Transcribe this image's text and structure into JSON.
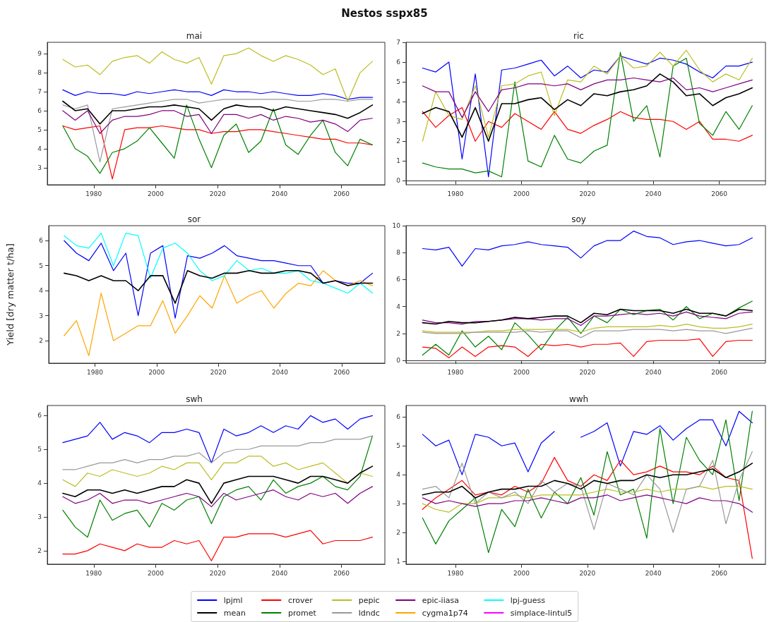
{
  "chart_data": [
    {
      "type": "line",
      "title": "mai",
      "annotations": [
        "Nestos sspx85"
      ],
      "legend": "bottom",
      "marker": "none",
      "xlim": [
        1965,
        2074
      ],
      "xticks": [
        1980,
        2000,
        2020,
        2040,
        2060
      ],
      "ylim": [
        2.1,
        9.6
      ],
      "yticks": [
        3,
        4,
        5,
        6,
        7,
        8,
        9
      ],
      "x": [
        1970,
        1974,
        1978,
        1982,
        1986,
        1990,
        1994,
        1998,
        2002,
        2006,
        2010,
        2014,
        2018,
        2022,
        2026,
        2030,
        2034,
        2038,
        2042,
        2046,
        2050,
        2054,
        2058,
        2062,
        2066,
        2070
      ],
      "series": [
        {
          "name": "lpjml",
          "color": "#0000ff",
          "values": [
            7.1,
            6.8,
            7.0,
            6.9,
            6.9,
            6.8,
            7.0,
            6.9,
            7.0,
            7.1,
            7.0,
            7.0,
            6.8,
            7.1,
            7.0,
            7.0,
            6.9,
            7.0,
            6.9,
            6.8,
            6.8,
            6.9,
            6.8,
            6.6,
            6.7,
            6.7
          ]
        },
        {
          "name": "mean",
          "color": "#000000",
          "values": [
            6.5,
            6.0,
            6.1,
            5.3,
            6.0,
            6.0,
            6.1,
            6.2,
            6.2,
            6.3,
            6.2,
            6.1,
            5.5,
            6.1,
            6.3,
            6.2,
            6.2,
            6.0,
            6.2,
            6.1,
            6.0,
            5.9,
            5.8,
            5.6,
            5.9,
            6.3
          ]
        },
        {
          "name": "crover",
          "color": "#ff0000",
          "values": [
            5.2,
            5.0,
            5.1,
            5.2,
            2.4,
            5.0,
            5.1,
            5.1,
            5.2,
            5.1,
            5.0,
            5.0,
            4.8,
            4.9,
            4.9,
            5.0,
            5.0,
            4.9,
            4.8,
            4.7,
            4.6,
            4.5,
            4.5,
            4.3,
            4.3,
            4.2
          ]
        },
        {
          "name": "promet",
          "color": "#008000",
          "values": [
            5.2,
            4.0,
            3.6,
            2.7,
            3.8,
            4.0,
            4.4,
            5.1,
            4.3,
            3.5,
            6.3,
            4.5,
            3.0,
            4.7,
            5.3,
            3.8,
            4.4,
            6.1,
            4.2,
            3.7,
            4.7,
            5.5,
            3.8,
            3.1,
            4.5,
            4.2
          ]
        },
        {
          "name": "pepic",
          "color": "#bcbd22",
          "values": [
            8.7,
            8.3,
            8.4,
            7.9,
            8.6,
            8.8,
            8.9,
            8.5,
            9.1,
            8.7,
            8.5,
            8.8,
            7.4,
            8.9,
            9.0,
            9.3,
            8.9,
            8.6,
            8.9,
            8.7,
            8.4,
            7.9,
            8.2,
            6.5,
            8.0,
            8.6
          ]
        },
        {
          "name": "ldndc",
          "color": "#999999",
          "values": [
            6.3,
            6.1,
            6.3,
            3.3,
            6.1,
            6.2,
            6.3,
            6.4,
            6.5,
            6.6,
            6.6,
            6.4,
            6.5,
            6.6,
            6.6,
            6.6,
            6.6,
            6.6,
            6.6,
            6.5,
            6.5,
            6.6,
            6.6,
            6.5,
            6.6,
            6.6
          ]
        },
        {
          "name": "epic-iiasa",
          "color": "#800080",
          "values": [
            6.0,
            5.5,
            6.0,
            4.8,
            5.5,
            5.7,
            5.7,
            5.8,
            6.0,
            6.0,
            5.7,
            5.8,
            4.8,
            5.8,
            5.8,
            5.6,
            5.8,
            5.5,
            5.7,
            5.6,
            5.4,
            5.5,
            5.3,
            4.9,
            5.5,
            5.6
          ]
        }
      ]
    },
    {
      "type": "line",
      "title": "ric",
      "legend": "bottom",
      "marker": "none",
      "xlim": [
        1965,
        2074
      ],
      "xticks": [
        1980,
        2000,
        2020,
        2040,
        2060
      ],
      "ylim": [
        -0.2,
        7
      ],
      "yticks": [
        0,
        1,
        2,
        3,
        4,
        5,
        6,
        7
      ],
      "x": [
        1970,
        1974,
        1978,
        1982,
        1986,
        1990,
        1994,
        1998,
        2002,
        2006,
        2010,
        2014,
        2018,
        2022,
        2026,
        2030,
        2034,
        2038,
        2042,
        2046,
        2050,
        2054,
        2058,
        2062,
        2066,
        2070
      ],
      "series": [
        {
          "name": "lpjml",
          "color": "#0000ff",
          "values": [
            5.7,
            5.5,
            6.0,
            1.1,
            5.4,
            0.2,
            5.6,
            5.7,
            5.9,
            6.1,
            5.3,
            5.8,
            5.2,
            5.6,
            5.5,
            6.3,
            6.1,
            5.9,
            6.2,
            6.1,
            5.9,
            5.5,
            5.2,
            5.8,
            5.8,
            6.0
          ]
        },
        {
          "name": "mean",
          "color": "#000000",
          "values": [
            3.4,
            3.7,
            3.5,
            2.2,
            3.7,
            2.0,
            3.9,
            3.9,
            4.1,
            4.2,
            3.6,
            4.1,
            3.8,
            4.4,
            4.3,
            4.5,
            4.6,
            4.8,
            5.4,
            5.0,
            4.3,
            4.4,
            3.8,
            4.2,
            4.4,
            4.7
          ]
        },
        {
          "name": "crover",
          "color": "#ff0000",
          "values": [
            3.5,
            2.7,
            3.3,
            3.7,
            2.0,
            3.0,
            2.7,
            3.4,
            3.0,
            2.6,
            3.5,
            2.6,
            2.4,
            2.8,
            3.1,
            3.5,
            3.2,
            3.1,
            3.1,
            3.0,
            2.6,
            3.0,
            2.1,
            2.1,
            2.0,
            2.3
          ]
        },
        {
          "name": "promet",
          "color": "#008000",
          "values": [
            0.9,
            0.7,
            0.6,
            0.6,
            0.4,
            0.5,
            0.2,
            5.0,
            1.0,
            0.7,
            2.3,
            1.1,
            0.9,
            1.5,
            1.8,
            6.5,
            3.0,
            3.8,
            1.2,
            5.8,
            6.2,
            2.9,
            2.3,
            3.5,
            2.6,
            3.8
          ]
        },
        {
          "name": "pepic",
          "color": "#bcbd22",
          "values": [
            2.0,
            4.5,
            3.3,
            3.1,
            4.8,
            2.2,
            4.8,
            4.9,
            5.3,
            5.5,
            3.3,
            5.1,
            5.0,
            5.8,
            5.4,
            6.3,
            5.7,
            5.8,
            6.5,
            5.8,
            6.6,
            5.6,
            5.0,
            5.4,
            5.1,
            6.2
          ]
        },
        {
          "name": "epic-iiasa",
          "color": "#800080",
          "values": [
            4.8,
            4.5,
            4.5,
            3.2,
            4.5,
            3.5,
            4.6,
            4.7,
            4.9,
            4.9,
            4.8,
            4.9,
            4.6,
            4.9,
            5.1,
            5.1,
            5.2,
            5.1,
            5.0,
            5.2,
            4.6,
            4.7,
            4.5,
            4.7,
            4.9,
            5.1
          ]
        }
      ]
    },
    {
      "type": "line",
      "title": "sor",
      "ylabel": "Yield [dry matter t/ha]",
      "legend": "bottom",
      "marker": "none",
      "xlim": [
        1965,
        2074
      ],
      "xticks": [
        1980,
        2000,
        2020,
        2040,
        2060
      ],
      "ylim": [
        1.1,
        6.6
      ],
      "yticks": [
        2,
        3,
        4,
        5,
        6
      ],
      "x": [
        1970,
        1974,
        1978,
        1982,
        1986,
        1990,
        1994,
        1998,
        2002,
        2006,
        2010,
        2014,
        2018,
        2022,
        2026,
        2030,
        2034,
        2038,
        2042,
        2046,
        2050,
        2054,
        2058,
        2062,
        2066,
        2070
      ],
      "series": [
        {
          "name": "lpjml",
          "color": "#0000ff",
          "values": [
            6.0,
            5.5,
            5.2,
            5.9,
            4.8,
            5.5,
            3.0,
            5.5,
            5.8,
            2.9,
            5.4,
            5.3,
            5.5,
            5.8,
            5.4,
            5.3,
            5.2,
            5.2,
            5.1,
            5.0,
            5.0,
            4.3,
            4.4,
            4.3,
            4.3,
            4.7
          ]
        },
        {
          "name": "mean",
          "color": "#000000",
          "values": [
            4.7,
            4.6,
            4.4,
            4.6,
            4.4,
            4.4,
            4.0,
            4.6,
            4.6,
            3.5,
            4.8,
            4.6,
            4.5,
            4.7,
            4.7,
            4.8,
            4.7,
            4.7,
            4.8,
            4.8,
            4.7,
            4.3,
            4.4,
            4.2,
            4.3,
            4.3
          ]
        },
        {
          "name": "cygma1p74",
          "color": "#ffa500",
          "values": [
            2.2,
            2.8,
            1.4,
            3.9,
            2.0,
            2.3,
            2.6,
            2.6,
            3.6,
            2.3,
            3.0,
            3.8,
            3.3,
            4.6,
            3.5,
            3.8,
            4.0,
            3.3,
            3.9,
            4.3,
            4.2,
            4.8,
            4.4,
            4.2,
            4.4,
            4.2
          ]
        },
        {
          "name": "lpj-guess",
          "color": "#00ffff",
          "values": [
            6.2,
            5.8,
            5.7,
            6.3,
            5.0,
            6.3,
            6.2,
            4.5,
            5.7,
            5.9,
            5.5,
            4.8,
            4.4,
            4.6,
            5.2,
            4.8,
            4.9,
            4.7,
            4.7,
            4.8,
            4.4,
            4.3,
            4.1,
            3.9,
            4.3,
            3.9
          ]
        }
      ]
    },
    {
      "type": "line",
      "title": "soy",
      "legend": "bottom",
      "marker": "none",
      "xlim": [
        1965,
        2074
      ],
      "xticks": [
        1980,
        2000,
        2020,
        2040,
        2060
      ],
      "ylim": [
        -0.2,
        10
      ],
      "yticks": [
        0,
        2,
        4,
        6,
        8,
        10
      ],
      "x": [
        1970,
        1974,
        1978,
        1982,
        1986,
        1990,
        1994,
        1998,
        2002,
        2006,
        2010,
        2014,
        2018,
        2022,
        2026,
        2030,
        2034,
        2038,
        2042,
        2046,
        2050,
        2054,
        2058,
        2062,
        2066,
        2070
      ],
      "series": [
        {
          "name": "lpjml",
          "color": "#0000ff",
          "values": [
            8.3,
            8.2,
            8.4,
            7.0,
            8.3,
            8.2,
            8.5,
            8.6,
            8.8,
            8.6,
            8.5,
            8.4,
            7.6,
            8.5,
            8.9,
            8.9,
            9.6,
            9.2,
            9.1,
            8.6,
            8.8,
            8.9,
            8.7,
            8.5,
            8.6,
            9.1
          ]
        },
        {
          "name": "mean",
          "color": "#000000",
          "values": [
            2.8,
            2.7,
            2.9,
            2.8,
            2.8,
            2.9,
            3.0,
            3.2,
            3.1,
            3.2,
            3.3,
            3.3,
            2.8,
            3.5,
            3.4,
            3.8,
            3.7,
            3.7,
            3.7,
            3.5,
            3.8,
            3.5,
            3.5,
            3.3,
            3.8,
            3.7
          ]
        },
        {
          "name": "crover",
          "color": "#ff0000",
          "values": [
            1.0,
            0.9,
            0.2,
            1.0,
            0.3,
            1.0,
            1.1,
            1.0,
            0.3,
            1.2,
            1.1,
            1.2,
            1.0,
            1.2,
            1.2,
            1.3,
            0.3,
            1.4,
            1.5,
            1.5,
            1.5,
            1.6,
            0.3,
            1.4,
            1.5,
            1.5
          ]
        },
        {
          "name": "promet",
          "color": "#008000",
          "values": [
            0.4,
            1.2,
            0.4,
            2.2,
            1.0,
            1.8,
            0.8,
            2.8,
            1.9,
            0.8,
            2.2,
            3.2,
            2.0,
            3.3,
            2.8,
            3.8,
            3.4,
            3.7,
            3.8,
            3.0,
            4.0,
            3.1,
            3.5,
            3.3,
            3.9,
            4.4
          ]
        },
        {
          "name": "pepic",
          "color": "#bcbd22",
          "values": [
            2.2,
            2.1,
            2.1,
            2.1,
            2.1,
            2.2,
            2.2,
            2.3,
            2.3,
            2.3,
            2.3,
            2.3,
            2.1,
            2.4,
            2.5,
            2.5,
            2.5,
            2.5,
            2.6,
            2.5,
            2.7,
            2.5,
            2.4,
            2.4,
            2.5,
            2.7
          ]
        },
        {
          "name": "ldndc",
          "color": "#999999",
          "values": [
            2.1,
            2.0,
            2.0,
            2.0,
            2.1,
            2.1,
            2.1,
            2.1,
            2.2,
            2.1,
            2.2,
            2.2,
            1.7,
            2.2,
            2.2,
            2.2,
            2.3,
            2.3,
            2.3,
            2.2,
            2.3,
            2.2,
            2.2,
            2.0,
            2.2,
            2.4
          ]
        },
        {
          "name": "epic-iiasa",
          "color": "#800080",
          "values": [
            3.0,
            2.8,
            2.8,
            2.7,
            2.9,
            2.9,
            3.0,
            3.1,
            3.1,
            3.0,
            3.1,
            3.1,
            2.6,
            3.3,
            3.3,
            3.4,
            3.5,
            3.4,
            3.5,
            3.3,
            3.6,
            3.3,
            3.2,
            3.1,
            3.5,
            3.6
          ]
        }
      ]
    },
    {
      "type": "line",
      "title": "swh",
      "legend": "bottom",
      "marker": "none",
      "xlim": [
        1965,
        2074
      ],
      "xticks": [
        1980,
        2000,
        2020,
        2040,
        2060
      ],
      "ylim": [
        1.6,
        6.3
      ],
      "yticks": [
        2,
        3,
        4,
        5,
        6
      ],
      "x": [
        1970,
        1974,
        1978,
        1982,
        1986,
        1990,
        1994,
        1998,
        2002,
        2006,
        2010,
        2014,
        2018,
        2022,
        2026,
        2030,
        2034,
        2038,
        2042,
        2046,
        2050,
        2054,
        2058,
        2062,
        2066,
        2070
      ],
      "series": [
        {
          "name": "lpjml",
          "color": "#0000ff",
          "values": [
            5.2,
            5.3,
            5.4,
            5.8,
            5.3,
            5.5,
            5.4,
            5.2,
            5.5,
            5.5,
            5.6,
            5.5,
            4.6,
            5.6,
            5.4,
            5.5,
            5.7,
            5.5,
            5.7,
            5.6,
            6.0,
            5.8,
            5.9,
            5.6,
            5.9,
            6.0
          ]
        },
        {
          "name": "mean",
          "color": "#000000",
          "values": [
            3.7,
            3.6,
            3.8,
            3.8,
            3.7,
            3.8,
            3.7,
            3.8,
            3.9,
            3.9,
            4.1,
            4.0,
            3.4,
            4.0,
            4.1,
            4.2,
            4.2,
            4.2,
            4.1,
            4.0,
            4.2,
            4.2,
            4.1,
            4.0,
            4.3,
            4.5
          ]
        },
        {
          "name": "crover",
          "color": "#ff0000",
          "values": [
            1.9,
            1.9,
            2.0,
            2.2,
            2.1,
            2.0,
            2.2,
            2.1,
            2.1,
            2.3,
            2.2,
            2.3,
            1.7,
            2.4,
            2.4,
            2.5,
            2.5,
            2.5,
            2.4,
            2.5,
            2.6,
            2.2,
            2.3,
            2.3,
            2.3,
            2.4
          ]
        },
        {
          "name": "promet",
          "color": "#008000",
          "values": [
            3.2,
            2.7,
            2.4,
            3.5,
            2.9,
            3.1,
            3.2,
            2.7,
            3.4,
            3.2,
            3.5,
            3.6,
            2.8,
            3.6,
            3.8,
            3.9,
            3.5,
            4.1,
            3.7,
            3.9,
            4.0,
            4.2,
            3.9,
            3.8,
            4.2,
            5.4
          ]
        },
        {
          "name": "pepic",
          "color": "#bcbd22",
          "values": [
            4.1,
            3.9,
            4.3,
            4.2,
            4.4,
            4.3,
            4.2,
            4.3,
            4.5,
            4.4,
            4.6,
            4.6,
            4.1,
            4.6,
            4.6,
            4.8,
            4.8,
            4.5,
            4.6,
            4.4,
            4.5,
            4.6,
            4.3,
            4.0,
            4.3,
            4.2
          ]
        },
        {
          "name": "ldndc",
          "color": "#999999",
          "values": [
            4.4,
            4.4,
            4.5,
            4.6,
            4.6,
            4.7,
            4.6,
            4.7,
            4.7,
            4.8,
            4.8,
            4.9,
            4.6,
            4.9,
            5.0,
            5.0,
            5.1,
            5.1,
            5.1,
            5.1,
            5.2,
            5.2,
            5.3,
            5.3,
            5.3,
            5.4
          ]
        },
        {
          "name": "epic-iiasa",
          "color": "#800080",
          "values": [
            3.6,
            3.4,
            3.5,
            3.7,
            3.4,
            3.5,
            3.5,
            3.4,
            3.5,
            3.6,
            3.7,
            3.6,
            3.3,
            3.7,
            3.5,
            3.6,
            3.7,
            3.8,
            3.6,
            3.5,
            3.7,
            3.6,
            3.7,
            3.4,
            3.7,
            3.9
          ]
        }
      ]
    },
    {
      "type": "line",
      "title": "wwh",
      "legend": "bottom",
      "marker": "none",
      "xlim": [
        1965,
        2074
      ],
      "xticks": [
        1980,
        2000,
        2020,
        2040,
        2060
      ],
      "ylim": [
        0.9,
        6.4
      ],
      "yticks": [
        1,
        2,
        3,
        4,
        5,
        6
      ],
      "x": [
        1970,
        1974,
        1978,
        1982,
        1986,
        1990,
        1994,
        1998,
        2002,
        2006,
        2010,
        2014,
        2018,
        2022,
        2026,
        2030,
        2034,
        2038,
        2042,
        2046,
        2050,
        2054,
        2058,
        2062,
        2066,
        2070
      ],
      "series": [
        {
          "name": "lpjml",
          "color": "#0000ff",
          "values": [
            5.4,
            5.0,
            5.2,
            4.0,
            5.4,
            5.3,
            5.0,
            5.1,
            4.1,
            5.1,
            5.5,
            null,
            5.3,
            5.5,
            5.8,
            4.3,
            5.5,
            5.4,
            5.7,
            5.2,
            5.6,
            5.9,
            5.9,
            5.0,
            6.2,
            5.8
          ]
        },
        {
          "name": "mean",
          "color": "#000000",
          "values": [
            3.3,
            3.4,
            3.4,
            3.6,
            3.2,
            3.4,
            3.5,
            3.5,
            3.6,
            3.6,
            3.8,
            3.7,
            3.5,
            3.8,
            3.7,
            3.8,
            3.8,
            4.0,
            3.9,
            4.0,
            4.0,
            4.1,
            4.2,
            3.9,
            4.1,
            4.4
          ]
        },
        {
          "name": "crover",
          "color": "#ff0000",
          "values": [
            2.8,
            3.2,
            3.5,
            3.8,
            3.3,
            3.4,
            3.3,
            3.6,
            3.4,
            3.7,
            4.6,
            3.8,
            3.6,
            4.0,
            3.8,
            4.5,
            4.0,
            4.1,
            4.3,
            4.1,
            4.1,
            4.0,
            4.3,
            3.9,
            3.8,
            1.1
          ]
        },
        {
          "name": "promet",
          "color": "#008000",
          "values": [
            2.5,
            1.6,
            2.4,
            2.8,
            3.2,
            1.3,
            2.8,
            2.2,
            3.5,
            2.5,
            3.4,
            3.0,
            3.9,
            2.6,
            4.8,
            3.3,
            3.5,
            1.8,
            5.6,
            3.0,
            5.3,
            4.5,
            4.0,
            5.9,
            3.1,
            6.2
          ]
        },
        {
          "name": "pepic",
          "color": "#bcbd22",
          "values": [
            3.0,
            2.8,
            2.7,
            3.0,
            3.0,
            3.2,
            3.2,
            3.3,
            3.2,
            3.3,
            3.3,
            3.3,
            3.3,
            3.4,
            3.5,
            3.4,
            3.4,
            3.5,
            3.4,
            3.5,
            3.5,
            3.6,
            3.5,
            3.6,
            3.6,
            3.5
          ]
        },
        {
          "name": "ldndc",
          "color": "#999999",
          "values": [
            3.5,
            3.6,
            3.2,
            4.4,
            3.0,
            3.4,
            3.2,
            3.4,
            3.0,
            3.8,
            3.4,
            3.7,
            3.6,
            2.1,
            3.7,
            3.5,
            3.3,
            4.0,
            3.5,
            2.0,
            3.5,
            3.6,
            4.5,
            2.3,
            3.8,
            4.8
          ]
        },
        {
          "name": "epic-iiasa",
          "color": "#800080",
          "values": [
            3.2,
            3.0,
            3.1,
            3.0,
            2.9,
            3.0,
            3.0,
            3.1,
            3.1,
            3.2,
            3.1,
            3.0,
            3.2,
            3.2,
            3.3,
            3.1,
            3.2,
            3.3,
            3.2,
            3.1,
            3.0,
            3.2,
            3.1,
            3.1,
            3.0,
            2.7
          ]
        },
        {
          "name": "simplace-lintul5",
          "color": "#ff00ff",
          "values": [
            null,
            null,
            null,
            null,
            null,
            null,
            null,
            null,
            null,
            null,
            null,
            null,
            null,
            null,
            null,
            null,
            null,
            null,
            null,
            null,
            null,
            null,
            null,
            null,
            null,
            null
          ]
        }
      ]
    }
  ]
}
